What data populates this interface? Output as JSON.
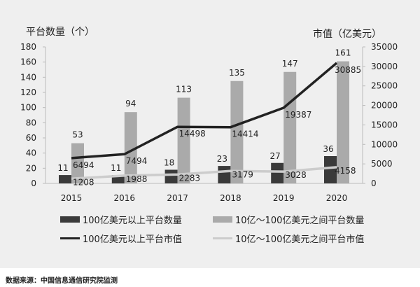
{
  "chart_data": {
    "type": "bar+line",
    "categories": [
      "2015",
      "2016",
      "2017",
      "2018",
      "2019",
      "2020"
    ],
    "left_axis": {
      "title": "平台数量（个）",
      "range": [
        0,
        180
      ],
      "ticks": [
        0,
        20,
        40,
        60,
        80,
        100,
        120,
        140,
        160,
        180
      ]
    },
    "right_axis": {
      "title": "市值（亿美元）",
      "range": [
        0,
        35000
      ],
      "ticks": [
        0,
        5000,
        10000,
        15000,
        20000,
        25000,
        30000,
        35000
      ]
    },
    "grid": false,
    "legend_position": "bottom",
    "series": [
      {
        "name": "100亿美元以上平台数量",
        "type": "bar",
        "axis": "left",
        "color": "#3a3a3a",
        "values": [
          11,
          11,
          18,
          23,
          27,
          36
        ]
      },
      {
        "name": "10亿～100亿美元之间平台数量",
        "type": "bar",
        "axis": "left",
        "color": "#aaaaaa",
        "values": [
          53,
          94,
          113,
          135,
          147,
          161
        ]
      },
      {
        "name": "100亿美元以上平台市值",
        "type": "line",
        "axis": "right",
        "color": "#222222",
        "values": [
          6494,
          7494,
          14498,
          14414,
          19387,
          30885
        ]
      },
      {
        "name": "10亿～100亿美元之间平台市值",
        "type": "line",
        "axis": "right",
        "color": "#cccccc",
        "values": [
          1208,
          1988,
          2283,
          3179,
          3028,
          4158
        ]
      }
    ]
  },
  "source": "数据来源：中国信息通信研究院监测"
}
